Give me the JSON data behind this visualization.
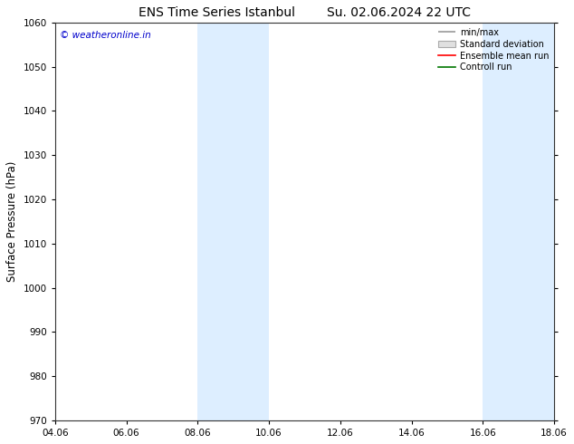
{
  "title": "ENS Time Series Istanbul",
  "title2": "Su. 02.06.2024 22 UTC",
  "ylabel": "Surface Pressure (hPa)",
  "ylim": [
    970,
    1060
  ],
  "yticks": [
    970,
    980,
    990,
    1000,
    1010,
    1020,
    1030,
    1040,
    1050,
    1060
  ],
  "xlim": [
    0,
    14
  ],
  "xtick_positions": [
    0,
    2,
    4,
    6,
    8,
    10,
    12,
    14
  ],
  "xtick_labels": [
    "04.06",
    "06.06",
    "08.06",
    "10.06",
    "12.06",
    "14.06",
    "16.06",
    "18.06"
  ],
  "shaded_bands": [
    {
      "x_start": 4,
      "x_end": 6
    },
    {
      "x_start": 12,
      "x_end": 14
    }
  ],
  "shade_color": "#ddeeff",
  "watermark": "© weatheronline.in",
  "watermark_color": "#0000cc",
  "legend_labels": [
    "min/max",
    "Standard deviation",
    "Ensemble mean run",
    "Controll run"
  ],
  "legend_colors": [
    "#999999",
    "#cccccc",
    "#ff0000",
    "#007700"
  ],
  "bg_color": "#ffffff",
  "title_fontsize": 10,
  "tick_fontsize": 7.5,
  "ylabel_fontsize": 8.5
}
